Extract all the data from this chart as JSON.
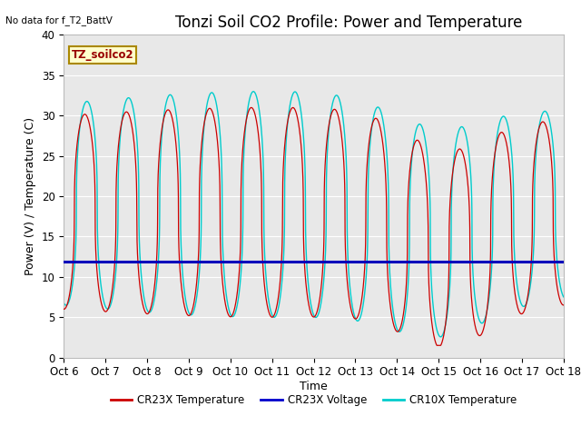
{
  "title": "Tonzi Soil CO2 Profile: Power and Temperature",
  "top_left_text": "No data for f_T2_BattV",
  "ylabel": "Power (V) / Temperature (C)",
  "xlabel": "Time",
  "ylim": [
    0,
    40
  ],
  "xlim": [
    0,
    12
  ],
  "xtick_labels": [
    "Oct 6",
    "Oct 7",
    "Oct 8",
    "Oct 9",
    "Oct 10",
    "Oct 11",
    "Oct 12",
    "Oct 13",
    "Oct 14",
    "Oct 15",
    "Oct 16",
    "Oct 17",
    "Oct 18"
  ],
  "ytick_vals": [
    0,
    5,
    10,
    15,
    20,
    25,
    30,
    35,
    40
  ],
  "legend_label_box": "TZ_soilco2",
  "legend_box_color": "#ffffcc",
  "legend_box_edge": "#aa8800",
  "legend_items": [
    {
      "label": "CR23X Temperature",
      "color": "#cc0000"
    },
    {
      "label": "CR23X Voltage",
      "color": "#0000cc"
    },
    {
      "label": "CR10X Temperature",
      "color": "#00cccc"
    }
  ],
  "voltage_value": 11.9,
  "fig_facecolor": "#ffffff",
  "plot_bg_color": "#e8e8e8",
  "grid_color": "#ffffff",
  "title_fontsize": 12,
  "axis_label_fontsize": 9,
  "tick_fontsize": 8.5
}
